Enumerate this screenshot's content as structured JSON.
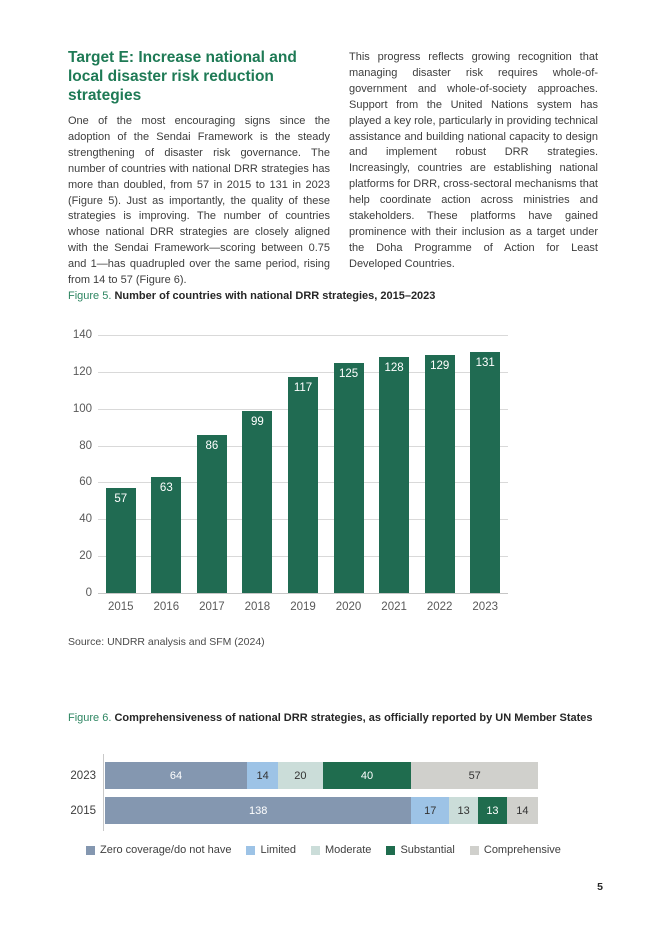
{
  "page": {
    "number": "5"
  },
  "article": {
    "heading": "Target E: Increase national and local disaster risk reduction strategies",
    "left_column": "One of the most encouraging signs since the adoption of the Sendai Framework is the steady strengthening of disaster risk governance. The number of countries with national DRR strategies has more than doubled, from 57 in 2015 to 131 in 2023 (Figure 5). Just as importantly, the quality of these strategies is improving. The number of countries whose national DRR strategies are closely aligned with the Sendai Framework—scoring between 0.75 and 1—has quadrupled over the same period, rising from 14 to 57 (Figure 6).",
    "right_column": "This progress reflects growing recognition that managing disaster risk requires whole-of-government and whole-of-society approaches. Support from the United Nations system has played a key role, particularly in providing technical assistance and building national capacity to design and implement robust DRR strategies. Increasingly, countries are establishing national platforms for DRR, cross-sectoral mechanisms that help coordinate action across ministries and stakeholders. These platforms have gained prominence with their inclusion as a target under the Doha Programme of Action for Least Developed Countries."
  },
  "figure5": {
    "label": "Figure 5.",
    "title": "Number of countries with national DRR strategies, 2015–2023",
    "source": "Source: UNDRR analysis and SFM (2024)"
  },
  "figure6": {
    "label": "Figure 6.",
    "title": "Comprehensiveness of national DRR strategies, as officially reported by UN Member States"
  },
  "chart_data": [
    {
      "type": "bar",
      "title": "Number of countries with national DRR strategies, 2015–2023",
      "categories": [
        "2015",
        "2016",
        "2017",
        "2018",
        "2019",
        "2020",
        "2021",
        "2022",
        "2023"
      ],
      "values": [
        57,
        63,
        86,
        99,
        117,
        125,
        128,
        129,
        131
      ],
      "xlabel": "",
      "ylabel": "",
      "ylim": [
        0,
        140
      ],
      "yticks": [
        140,
        120,
        100,
        80,
        60,
        40,
        20,
        0
      ],
      "grid": true,
      "bar_color": "#206B52",
      "data_label_color": "#FFFFFF",
      "legend_position": "none"
    },
    {
      "type": "bar",
      "subtype": "horizontal-stacked",
      "title": "Comprehensiveness of national DRR strategies, as officially reported by UN Member States",
      "categories": [
        "2023",
        "2015"
      ],
      "series": [
        {
          "name": "Zero coverage/do not have",
          "color": "#8497B0",
          "text_color": "#FFFFFF",
          "values": [
            64,
            138
          ]
        },
        {
          "name": "Limited",
          "color": "#9DC3E6",
          "text_color": "#333333",
          "values": [
            14,
            17
          ]
        },
        {
          "name": "Moderate",
          "color": "#CBDDD9",
          "text_color": "#333333",
          "values": [
            20,
            13
          ]
        },
        {
          "name": "Substantial",
          "color": "#1F6C4E",
          "text_color": "#FFFFFF",
          "values": [
            40,
            13
          ]
        },
        {
          "name": "Comprehensive",
          "color": "#D0D0CC",
          "text_color": "#333333",
          "values": [
            57,
            14
          ]
        }
      ],
      "xlim": [
        0,
        195
      ],
      "grid": false,
      "legend_position": "bottom"
    }
  ]
}
